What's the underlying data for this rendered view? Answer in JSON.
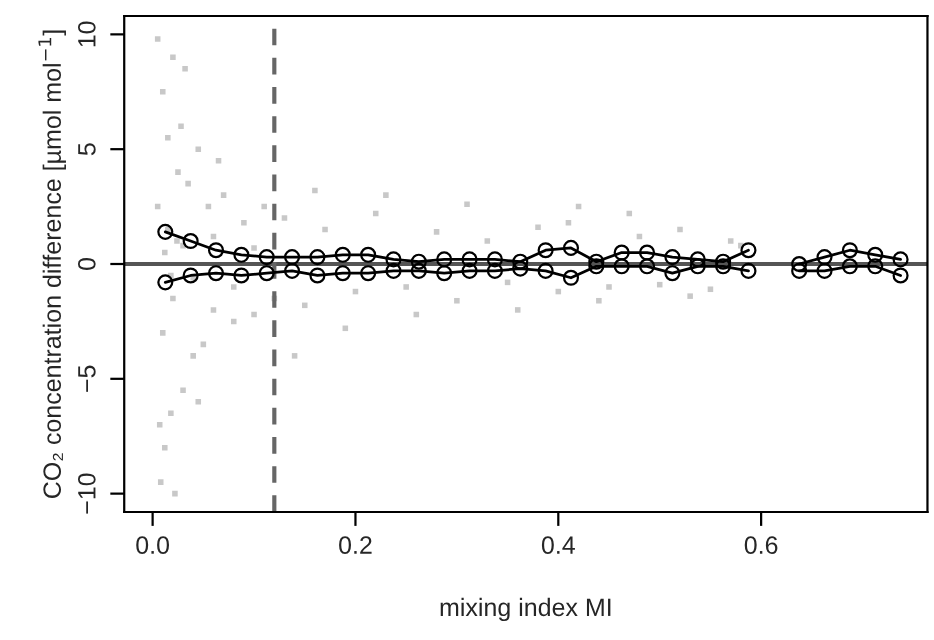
{
  "chart_data": {
    "type": "line",
    "xlabel": "mixing index MI",
    "ylabel": "CO₂ concentration difference [µmol mol$^{−1}$]",
    "xlim": [
      -0.028,
      0.764
    ],
    "ylim": [
      -10.8,
      10.8
    ],
    "xticks": [
      {
        "value": 0,
        "label": "0.0"
      },
      0.2,
      0.4,
      0.6
    ],
    "yticks": [
      {
        "value": -10,
        "label": "−10"
      },
      {
        "value": -5,
        "label": "−5"
      },
      0,
      5,
      10
    ],
    "grid": false,
    "legend": false,
    "marker": "circle",
    "line_style": "solid",
    "ref_lines": [
      {
        "axis": "y",
        "value": 0,
        "color": "#555555",
        "line_style": "solid"
      },
      {
        "axis": "x",
        "value": 0.12,
        "color": "#666666",
        "line_style": "dashed"
      }
    ],
    "series": [
      {
        "type": "scatter",
        "color": "#c8c8c8",
        "marker": "square",
        "x": [
          0.005,
          0.008,
          0.01,
          0.012,
          0.015,
          0.018,
          0.02,
          0.022,
          0.025,
          0.005,
          0.01,
          0.015,
          0.02,
          0.028,
          0.03,
          0.035,
          0.04,
          0.045,
          0.05,
          0.055,
          0.06,
          0.07,
          0.08,
          0.09,
          0.1,
          0.11,
          0.12,
          0.03,
          0.04,
          0.06,
          0.08,
          0.1,
          0.13,
          0.15,
          0.17,
          0.2,
          0.22,
          0.25,
          0.28,
          0.3,
          0.33,
          0.35,
          0.38,
          0.4,
          0.42,
          0.45,
          0.48,
          0.5,
          0.52,
          0.55,
          0.58,
          0.14,
          0.16,
          0.19,
          0.23,
          0.26,
          0.31,
          0.36,
          0.41,
          0.44,
          0.47,
          0.53,
          0.57,
          0.012,
          0.018,
          0.024,
          0.007,
          0.032,
          0.045,
          0.065
        ],
        "values": [
          9.8,
          -9.5,
          7.5,
          -8.0,
          5.5,
          -6.5,
          9.0,
          -10.0,
          4.0,
          2.5,
          -3.0,
          1.5,
          -1.5,
          6.0,
          -5.5,
          3.5,
          -4.0,
          5.0,
          -3.5,
          2.5,
          -2.0,
          3.0,
          -2.5,
          1.8,
          -2.2,
          2.5,
          -1.5,
          0.8,
          -0.6,
          1.2,
          -1.0,
          0.7,
          2.0,
          -1.8,
          1.5,
          -1.2,
          2.2,
          -1.0,
          1.4,
          -1.6,
          1.0,
          -0.8,
          1.6,
          -1.2,
          2.5,
          -1.0,
          1.2,
          -0.9,
          1.5,
          -1.1,
          0.8,
          -4.0,
          3.2,
          -2.8,
          3.0,
          -2.2,
          2.6,
          -2.0,
          1.8,
          -1.6,
          2.2,
          -1.4,
          1.0,
          0.5,
          -0.5,
          1.0,
          -7.0,
          8.5,
          -6.0,
          4.5
        ]
      },
      {
        "color": "#000000",
        "x": [
          0.0125,
          0.0375,
          0.0625,
          0.0875,
          0.1125,
          0.1375,
          0.1625,
          0.1875,
          0.2125,
          0.2375,
          0.2625,
          0.2875,
          0.3125,
          0.3375,
          0.3625,
          0.3875,
          0.4125,
          0.4375,
          0.4625,
          0.4875,
          0.5125,
          0.5375,
          0.5625,
          0.5875,
          0.6125,
          0.6375,
          0.6625,
          0.6875,
          0.7125,
          0.7375
        ],
        "values": [
          1.4,
          1.0,
          0.6,
          0.4,
          0.3,
          0.3,
          0.3,
          0.4,
          0.4,
          0.2,
          0.1,
          0.2,
          0.2,
          0.2,
          0.1,
          0.6,
          0.7,
          0.1,
          0.5,
          0.5,
          0.3,
          0.2,
          0.1,
          0.6,
          null,
          0.0,
          0.3,
          0.6,
          0.4,
          0.2
        ]
      },
      {
        "color": "#000000",
        "x": [
          0.0125,
          0.0375,
          0.0625,
          0.0875,
          0.1125,
          0.1375,
          0.1625,
          0.1875,
          0.2125,
          0.2375,
          0.2625,
          0.2875,
          0.3125,
          0.3375,
          0.3625,
          0.3875,
          0.4125,
          0.4375,
          0.4625,
          0.4875,
          0.5125,
          0.5375,
          0.5625,
          0.5875,
          0.6125,
          0.6375,
          0.6625,
          0.6875,
          0.7125,
          0.7375
        ],
        "values": [
          -0.8,
          -0.5,
          -0.4,
          -0.5,
          -0.4,
          -0.3,
          -0.5,
          -0.4,
          -0.4,
          -0.3,
          -0.3,
          -0.4,
          -0.3,
          -0.3,
          -0.2,
          -0.3,
          -0.6,
          -0.1,
          -0.1,
          -0.1,
          -0.4,
          -0.1,
          -0.1,
          -0.3,
          null,
          -0.3,
          -0.3,
          -0.1,
          -0.1,
          -0.5
        ]
      }
    ]
  }
}
